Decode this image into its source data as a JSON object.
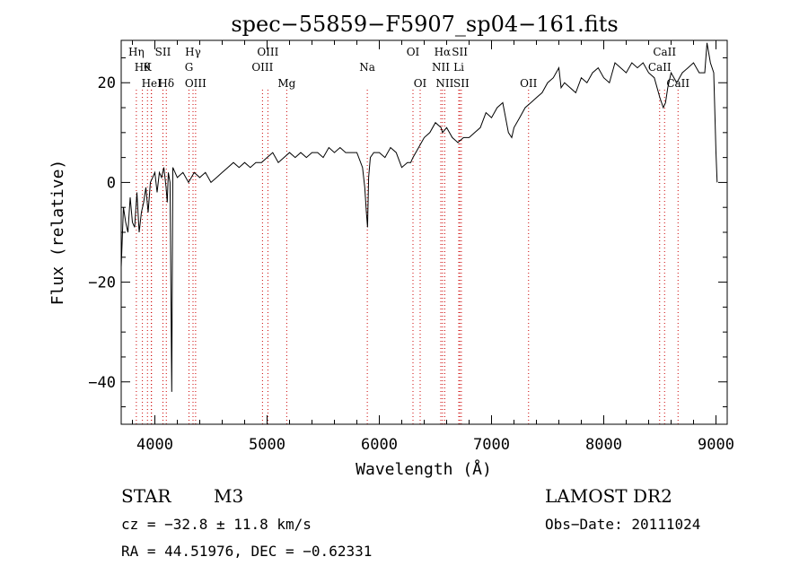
{
  "chart_data": {
    "type": "line",
    "title": "spec−55859−F5907_sp04−161.fits",
    "xlabel": "Wavelength (Å)",
    "ylabel": "Flux (relative)",
    "xlim": [
      3700,
      9100
    ],
    "ylim": [
      -48.5,
      28.5
    ],
    "xticks": [
      4000,
      5000,
      6000,
      7000,
      8000,
      9000
    ],
    "yticks": [
      -40,
      -20,
      0,
      20
    ],
    "grid": false,
    "line_color": "#000000",
    "marker_color": "#cc0000",
    "series": [
      {
        "x": [
          3700,
          3720,
          3740,
          3760,
          3780,
          3800,
          3820,
          3840,
          3860,
          3880,
          3900,
          3920,
          3940,
          3960,
          3980,
          4000,
          4020,
          4040,
          4060,
          4080,
          4100,
          4110,
          4120,
          4135,
          4150,
          4160,
          4180,
          4200,
          4250,
          4300,
          4350,
          4400,
          4450,
          4500,
          4550,
          4600,
          4650,
          4700,
          4750,
          4800,
          4850,
          4900,
          4950,
          5000,
          5050,
          5100,
          5150,
          5200,
          5250,
          5300,
          5350,
          5400,
          5450,
          5500,
          5550,
          5600,
          5650,
          5700,
          5750,
          5800,
          5850,
          5870,
          5885,
          5895,
          5905,
          5920,
          5950,
          6000,
          6050,
          6100,
          6150,
          6200,
          6250,
          6280,
          6300,
          6350,
          6400,
          6450,
          6500,
          6550,
          6563,
          6600,
          6650,
          6700,
          6750,
          6800,
          6850,
          6900,
          6950,
          7000,
          7050,
          7100,
          7150,
          7180,
          7200,
          7250,
          7300,
          7350,
          7400,
          7450,
          7500,
          7550,
          7600,
          7620,
          7650,
          7700,
          7750,
          7800,
          7850,
          7900,
          7950,
          8000,
          8050,
          8100,
          8150,
          8200,
          8250,
          8300,
          8350,
          8400,
          8450,
          8500,
          8530,
          8550,
          8570,
          8600,
          8650,
          8700,
          8750,
          8800,
          8850,
          8900,
          8920,
          8950,
          8980,
          9000,
          9010
        ],
        "y": [
          -17,
          -5,
          -8,
          -10,
          -3,
          -8,
          -9,
          -2,
          -10,
          -6,
          -4,
          -1,
          -6,
          0,
          1,
          2,
          -2,
          2,
          1,
          3,
          -1,
          -4,
          2,
          0,
          -42,
          3,
          2,
          1,
          2,
          0,
          2,
          1,
          2,
          0,
          1,
          2,
          3,
          4,
          3,
          4,
          3,
          4,
          4,
          5,
          6,
          4,
          5,
          6,
          5,
          6,
          5,
          6,
          6,
          5,
          7,
          6,
          7,
          6,
          6,
          6,
          3,
          -1,
          -6,
          -9,
          1,
          5,
          6,
          6,
          5,
          7,
          6,
          3,
          4,
          4,
          5,
          7,
          9,
          10,
          12,
          11,
          10,
          11,
          9,
          8,
          9,
          9,
          10,
          11,
          14,
          13,
          15,
          16,
          10,
          9,
          11,
          13,
          15,
          16,
          17,
          18,
          20,
          21,
          23,
          19,
          20,
          19,
          18,
          21,
          20,
          22,
          23,
          21,
          20,
          24,
          23,
          22,
          24,
          23,
          24,
          22,
          21,
          17,
          15,
          16,
          19,
          22,
          20,
          22,
          23,
          24,
          22,
          22,
          28,
          24,
          22,
          6,
          0
        ]
      }
    ],
    "lines": [
      {
        "x": 3835,
        "labels": [
          {
            "row": 1,
            "text": "Hη"
          }
        ]
      },
      {
        "x": 3889,
        "labels": [
          {
            "row": 2,
            "text": "Hθ"
          }
        ]
      },
      {
        "x": 3934,
        "labels": [
          {
            "row": 2,
            "text": "K"
          }
        ]
      },
      {
        "x": 3968,
        "labels": []
      },
      {
        "x": 3970,
        "labels": [
          {
            "row": 3,
            "text": "HeI"
          }
        ]
      },
      {
        "x": 4072,
        "labels": [
          {
            "row": 1,
            "text": "SII"
          }
        ]
      },
      {
        "x": 4102,
        "labels": [
          {
            "row": 3,
            "text": "Hδ"
          }
        ]
      },
      {
        "x": 4304,
        "labels": [
          {
            "row": 2,
            "text": "G"
          }
        ]
      },
      {
        "x": 4340,
        "labels": [
          {
            "row": 1,
            "text": "Hγ"
          }
        ]
      },
      {
        "x": 4363,
        "labels": [
          {
            "row": 3,
            "text": "OIII"
          }
        ]
      },
      {
        "x": 4959,
        "labels": [
          {
            "row": 2,
            "text": "OIII"
          }
        ]
      },
      {
        "x": 5007,
        "labels": [
          {
            "row": 1,
            "text": "OIII"
          }
        ]
      },
      {
        "x": 5175,
        "labels": [
          {
            "row": 3,
            "text": "Mg"
          }
        ]
      },
      {
        "x": 5893,
        "labels": [
          {
            "row": 2,
            "text": "Na"
          }
        ]
      },
      {
        "x": 6300,
        "labels": [
          {
            "row": 1,
            "text": "OI"
          }
        ]
      },
      {
        "x": 6364,
        "labels": [
          {
            "row": 3,
            "text": "OI"
          }
        ]
      },
      {
        "x": 6548,
        "labels": [
          {
            "row": 2,
            "text": "NII"
          }
        ]
      },
      {
        "x": 6563,
        "labels": [
          {
            "row": 1,
            "text": "Hα"
          }
        ]
      },
      {
        "x": 6583,
        "labels": [
          {
            "row": 3,
            "text": "NII"
          }
        ]
      },
      {
        "x": 6708,
        "labels": [
          {
            "row": 2,
            "text": "Li"
          }
        ]
      },
      {
        "x": 6717,
        "labels": [
          {
            "row": 1,
            "text": "SII"
          }
        ]
      },
      {
        "x": 6731,
        "labels": [
          {
            "row": 3,
            "text": "SII"
          }
        ]
      },
      {
        "x": 7330,
        "labels": [
          {
            "row": 3,
            "text": "OII"
          }
        ]
      },
      {
        "x": 8498,
        "labels": [
          {
            "row": 2,
            "text": "CaII"
          }
        ]
      },
      {
        "x": 8542,
        "labels": [
          {
            "row": 1,
            "text": "CaII"
          }
        ]
      },
      {
        "x": 8662,
        "labels": [
          {
            "row": 3,
            "text": "CaII"
          }
        ]
      }
    ]
  },
  "info": {
    "star_type": "STAR",
    "star_class": "M3",
    "survey": "LAMOST DR2",
    "cz": "cz = −32.8 ± 11.8 km/s",
    "obs_date": "Obs−Date: 20111024",
    "coords": "RA =  44.51976, DEC =  −0.62331"
  }
}
